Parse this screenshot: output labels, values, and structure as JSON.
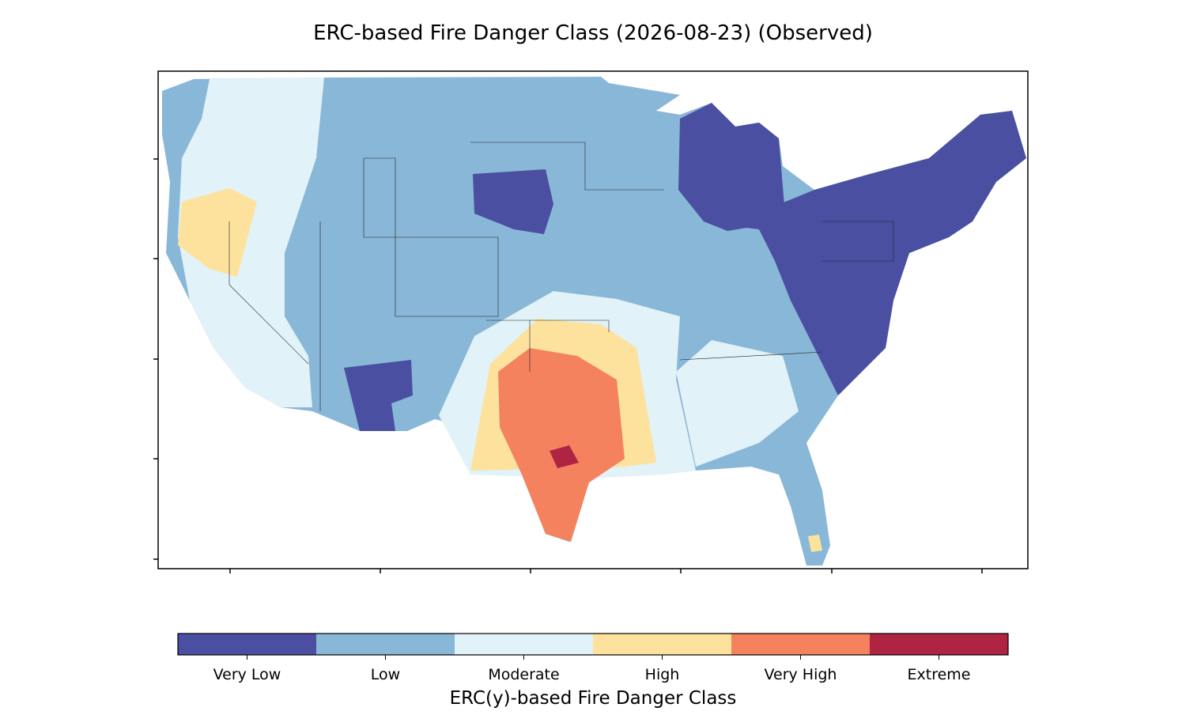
{
  "title": "ERC-based Fire Danger Class (2026-08-23) (Observed)",
  "colorbar": {
    "label": "ERC(y)-based Fire Danger Class",
    "classes": [
      {
        "name": "Very Low",
        "color": "#4a4fa1"
      },
      {
        "name": "Low",
        "color": "#89b7d7"
      },
      {
        "name": "Moderate",
        "color": "#e1f2f8"
      },
      {
        "name": "High",
        "color": "#fde29d"
      },
      {
        "name": "Very High",
        "color": "#f4825f"
      },
      {
        "name": "Extreme",
        "color": "#b02443"
      }
    ]
  }
}
